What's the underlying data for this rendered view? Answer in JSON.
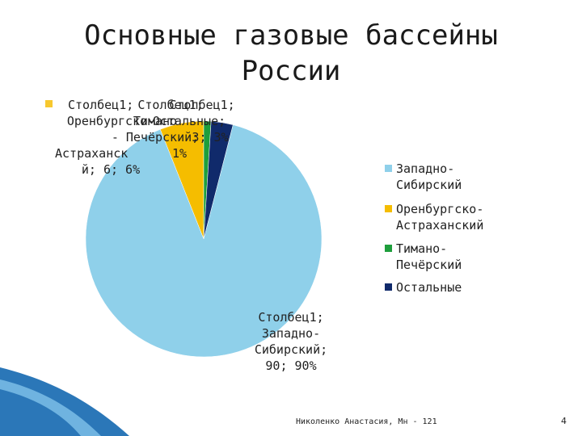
{
  "title_line1": "Основные газовые бассейны",
  "title_line2": "России",
  "footer": "Николенко Анастасия, Мн - 121",
  "page_number": "4",
  "colors": {
    "zapadno": "#8fd0ea",
    "orenburg": "#f5bd00",
    "timano": "#1e9e3c",
    "ostalnye": "#102a6b",
    "accent_wave": "#1f6fae"
  },
  "chart_data": {
    "type": "pie",
    "series_name": "Столбец1",
    "slices": [
      {
        "name": "Западно-Сибирский",
        "value": 90,
        "percent": "90%",
        "color_key": "zapadno"
      },
      {
        "name": "Оренбургско-Астраханский",
        "value": 6,
        "percent": "6%",
        "color_key": "orenburg"
      },
      {
        "name": "Тимано-Печёрский",
        "value": 1,
        "percent": "1%",
        "color_key": "timano"
      },
      {
        "name": "Остальные",
        "value": 3,
        "percent": "3%",
        "color_key": "ostalnye"
      }
    ],
    "labels": {
      "zapadno": [
        "Столбец1;",
        "Западно-",
        "Сибирский;",
        "90; 90%"
      ],
      "orenburg": [
        "Столбец1;",
        "Оренбургско-",
        "Астраханск",
        "й; 6; 6%"
      ],
      "timano": [
        "Столбец1;",
        "Тимано",
        "- Печёрский;",
        "1%"
      ],
      "ostalnye": [
        "Столбец1;",
        "Остальные;",
        "3; 3%"
      ]
    },
    "legend": [
      "Западно-Сибирский",
      "Оренбургско-Астраханский",
      "Тимано-Печёрский",
      "Остальные"
    ],
    "legend_lines": [
      [
        "Западно-Сибирский"
      ],
      [
        "Оренбургско-",
        "Астраханский"
      ],
      [
        "Тимано-Печёрский"
      ],
      [
        "Остальные"
      ]
    ],
    "legend_position": "right"
  }
}
